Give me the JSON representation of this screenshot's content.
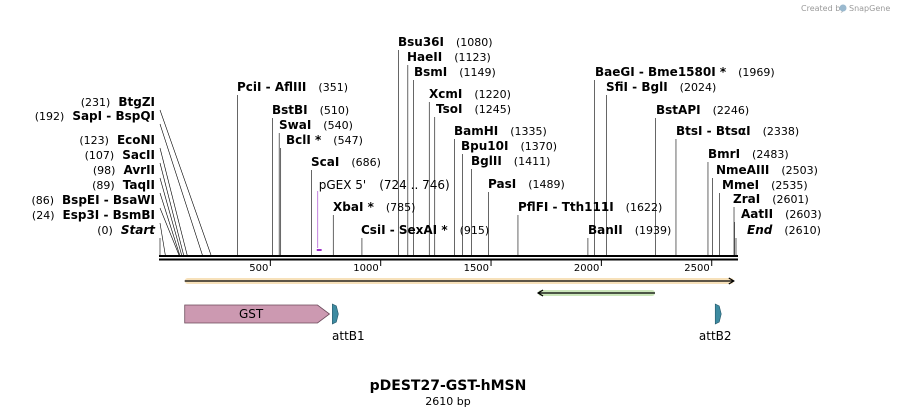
{
  "branding": {
    "created_by": "Created by",
    "app": "SnapGene"
  },
  "map": {
    "title": "pDEST27-GST-hMSN",
    "length_label": "2610 bp",
    "length": 2610,
    "ticks": [
      "500",
      "1000",
      "1500",
      "2000",
      "2500"
    ],
    "tick_values": [
      500,
      1000,
      1500,
      2000,
      2500
    ]
  },
  "sites": [
    {
      "pos": 0,
      "label": "Start",
      "pos_label": "(0)",
      "italic": true,
      "side": "left"
    },
    {
      "pos": 24,
      "label": "Esp3I  -  BsmBI",
      "pos_label": "(24)",
      "side": "left"
    },
    {
      "pos": 86,
      "label": "BspEI  -  BsaWI",
      "pos_label": "(86)",
      "side": "left"
    },
    {
      "pos": 89,
      "label": "TaqII",
      "pos_label": "(89)",
      "side": "left"
    },
    {
      "pos": 98,
      "label": "AvrII",
      "pos_label": "(98)",
      "side": "left"
    },
    {
      "pos": 107,
      "label": "SacII",
      "pos_label": "(107)",
      "side": "left"
    },
    {
      "pos": 123,
      "label": "EcoNI",
      "pos_label": "(123)",
      "side": "left"
    },
    {
      "pos": 192,
      "label": "SapI  -  BspQI",
      "pos_label": "(192)",
      "side": "left"
    },
    {
      "pos": 231,
      "label": "BtgZI",
      "pos_label": "(231)",
      "side": "left"
    },
    {
      "pos": 351,
      "label": "PciI  -  AflIII",
      "pos_label": "(351)",
      "side": "right"
    },
    {
      "pos": 510,
      "label": "BstBI",
      "pos_label": "(510)",
      "side": "right"
    },
    {
      "pos": 540,
      "label": "SwaI",
      "pos_label": "(540)",
      "side": "right"
    },
    {
      "pos": 547,
      "label": "BclI *",
      "pos_label": "(547)",
      "side": "right"
    },
    {
      "pos": 686,
      "label": "ScaI",
      "pos_label": "(686)",
      "side": "right"
    },
    {
      "pos": 785,
      "label": "XbaI *",
      "pos_label": "(785)",
      "side": "right"
    },
    {
      "pos": 915,
      "label": "CsiI  -  SexAI *",
      "pos_label": "(915)",
      "side": "right"
    },
    {
      "pos": 1080,
      "label": "Bsu36I",
      "pos_label": "(1080)",
      "side": "right"
    },
    {
      "pos": 1123,
      "label": "HaeII",
      "pos_label": "(1123)",
      "side": "right"
    },
    {
      "pos": 1149,
      "label": "BsmI",
      "pos_label": "(1149)",
      "side": "right"
    },
    {
      "pos": 1220,
      "label": "XcmI",
      "pos_label": "(1220)",
      "side": "right"
    },
    {
      "pos": 1245,
      "label": "TsoI",
      "pos_label": "(1245)",
      "side": "right"
    },
    {
      "pos": 1335,
      "label": "BamHI",
      "pos_label": "(1335)",
      "side": "right"
    },
    {
      "pos": 1370,
      "label": "Bpu10I",
      "pos_label": "(1370)",
      "side": "right"
    },
    {
      "pos": 1411,
      "label": "BglII",
      "pos_label": "(1411)",
      "side": "right"
    },
    {
      "pos": 1489,
      "label": "PasI",
      "pos_label": "(1489)",
      "side": "right"
    },
    {
      "pos": 1622,
      "label": "PflFI  -  Tth111I",
      "pos_label": "(1622)",
      "side": "right"
    },
    {
      "pos": 1939,
      "label": "BanII",
      "pos_label": "(1939)",
      "side": "right"
    },
    {
      "pos": 1969,
      "label": "BaeGI  -  Bme1580I *",
      "pos_label": "(1969)",
      "side": "right"
    },
    {
      "pos": 2024,
      "label": "SfiI  -  BglI",
      "pos_label": "(2024)",
      "side": "right"
    },
    {
      "pos": 2246,
      "label": "BstAPI",
      "pos_label": "(2246)",
      "side": "right"
    },
    {
      "pos": 2338,
      "label": "BtsI  -  BtsαI",
      "pos_label": "(2338)",
      "side": "right"
    },
    {
      "pos": 2483,
      "label": "BmrI",
      "pos_label": "(2483)",
      "side": "right"
    },
    {
      "pos": 2503,
      "label": "NmeAIII",
      "pos_label": "(2503)",
      "side": "right"
    },
    {
      "pos": 2535,
      "label": "MmeI",
      "pos_label": "(2535)",
      "side": "right"
    },
    {
      "pos": 2601,
      "label": "ZraI",
      "pos_label": "(2601)",
      "side": "right"
    },
    {
      "pos": 2603,
      "label": "AatII",
      "pos_label": "(2603)",
      "side": "right"
    },
    {
      "pos": 2610,
      "label": "End",
      "pos_label": "(2610)",
      "italic": true,
      "side": "right"
    }
  ],
  "primer": {
    "label": "pGEX 5'",
    "range_label": "(724 .. 746)",
    "start": 724,
    "end": 746,
    "color": "#9b2fc9"
  },
  "features": [
    {
      "label": "GST",
      "start": 112,
      "end": 768,
      "type": "cds",
      "color": "#cc99b1"
    },
    {
      "label": "attB1",
      "start": 790,
      "end": 815,
      "type": "att",
      "color": "#3d8ba1"
    },
    {
      "label": "attB2",
      "start": 2525,
      "end": 2550,
      "type": "att",
      "color": "#3d8ba1"
    }
  ],
  "orf_bars": [
    {
      "start": 112,
      "end": 2600,
      "direction": "forward",
      "color": "#e8a93a"
    },
    {
      "start": 1713,
      "end": 2243,
      "direction": "reverse",
      "color": "#6cbb3c"
    }
  ]
}
